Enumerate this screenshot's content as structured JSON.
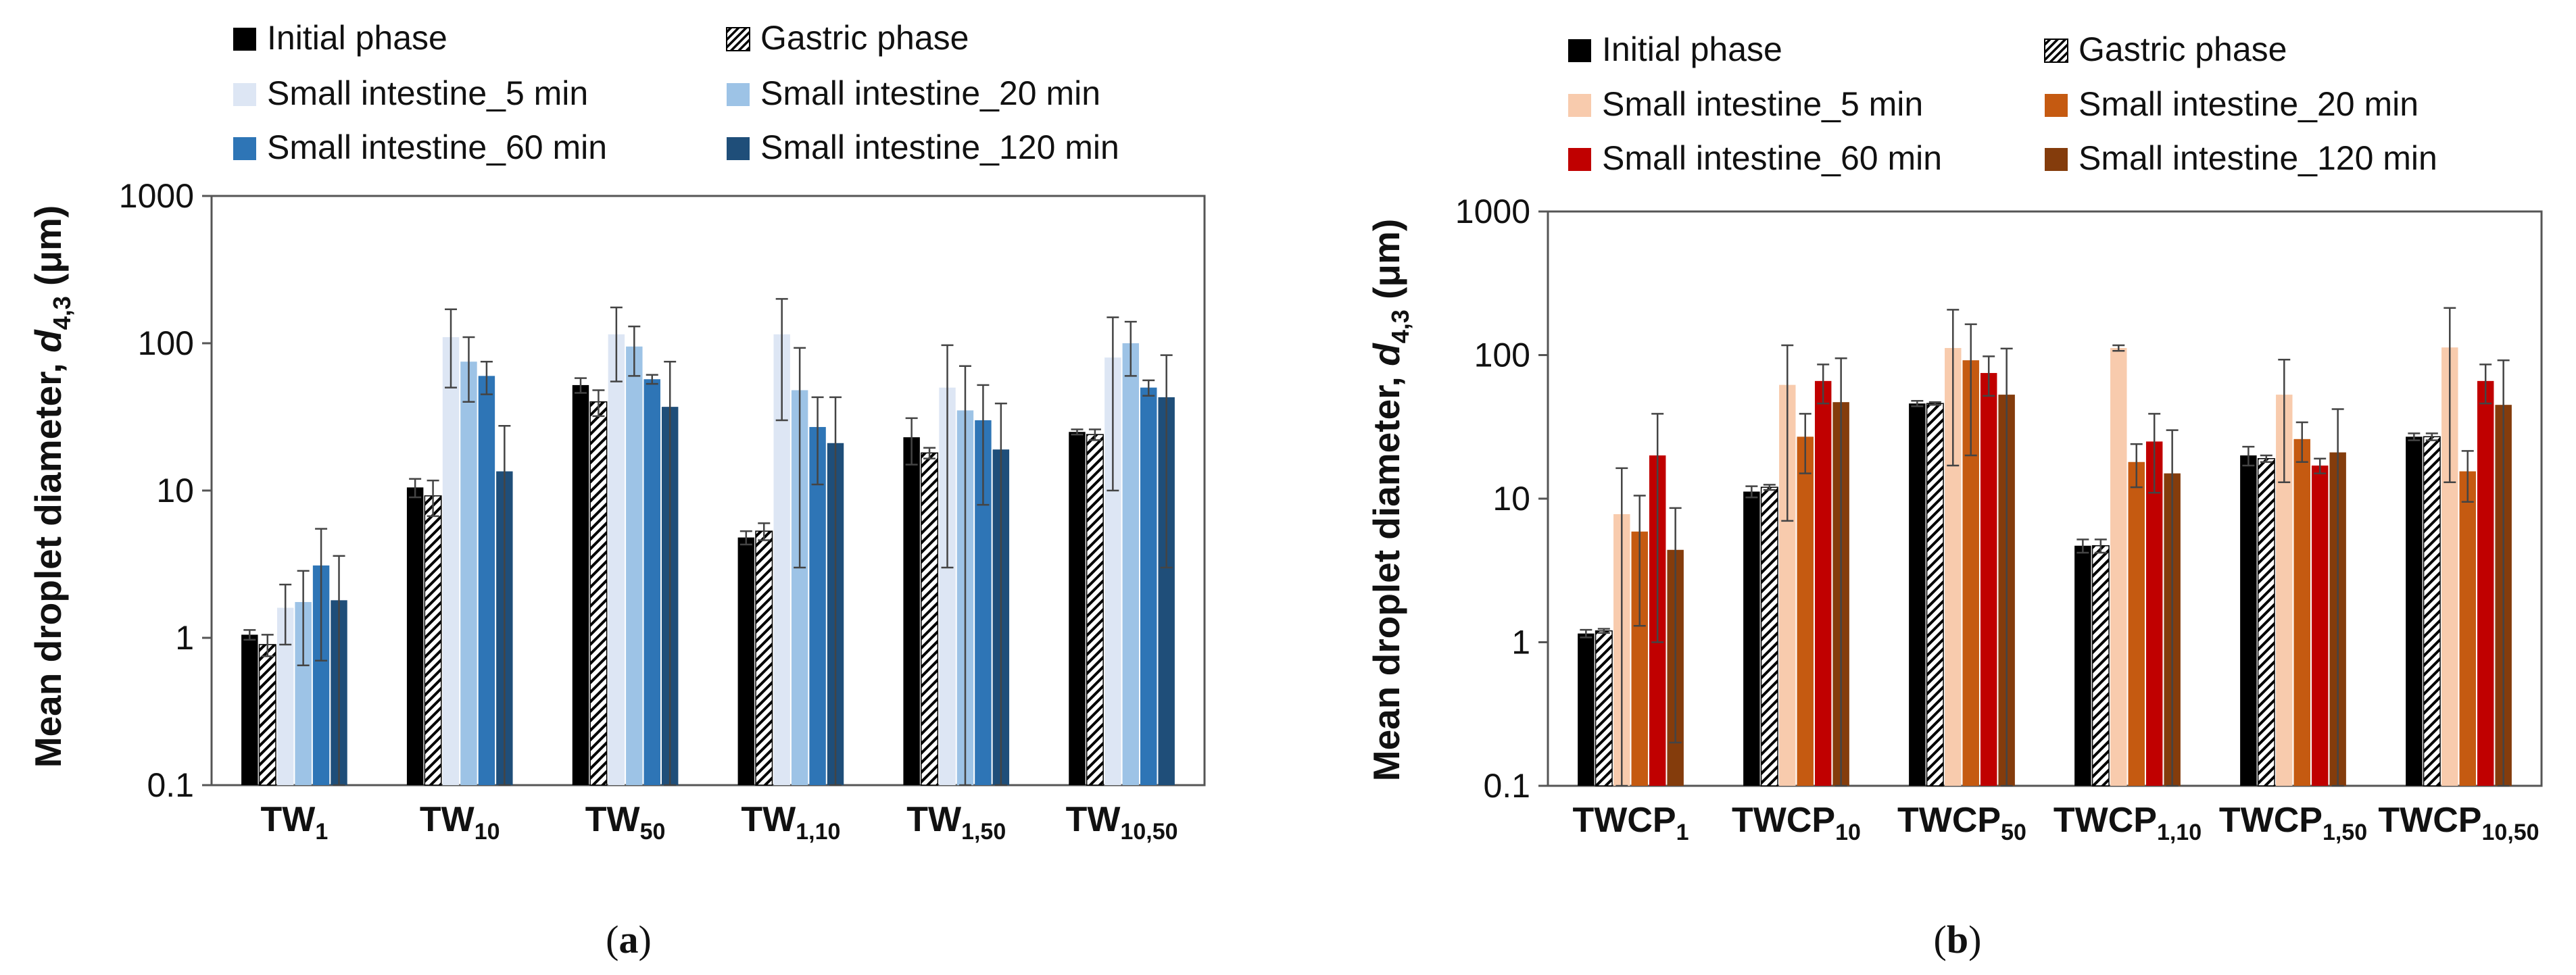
{
  "chart_data": [
    {
      "panel_label": "a",
      "type": "bar",
      "yscale": "log",
      "ylim": [
        0.1,
        1000
      ],
      "ylabel": "Mean droplet diameter,",
      "ylabel_symbol": "d",
      "ylabel_subscript": "4,3",
      "ylabel_unit": "(μm)",
      "ytick_labels": [
        "0.1",
        "1",
        "10",
        "100",
        "1000"
      ],
      "categories": [
        {
          "base": "TW",
          "sub": "1"
        },
        {
          "base": "TW",
          "sub": "10"
        },
        {
          "base": "TW",
          "sub": "50"
        },
        {
          "base": "TW",
          "sub": "1,10"
        },
        {
          "base": "TW",
          "sub": "1,50"
        },
        {
          "base": "TW",
          "sub": "10,50"
        }
      ],
      "series": [
        {
          "name": "Initial phase",
          "color": "#000000",
          "pattern": "solid",
          "values": [
            1.05,
            10.5,
            52,
            4.8,
            23,
            25
          ],
          "errors": [
            0.08,
            1.5,
            6,
            0.5,
            8,
            1
          ]
        },
        {
          "name": "Gastric phase",
          "color": "#000000",
          "pattern": "hatch",
          "values": [
            0.9,
            9.2,
            40,
            5.3,
            18,
            24
          ],
          "errors": [
            0.15,
            2.5,
            8,
            0.7,
            1.5,
            2
          ]
        },
        {
          "name": "Small intestine_5 min",
          "color": "#dde6f4",
          "pattern": "solid",
          "values": [
            1.6,
            110,
            115,
            115,
            50,
            80
          ],
          "errors": [
            0.7,
            60,
            60,
            85,
            47,
            70
          ]
        },
        {
          "name": "Small intestine_20 min",
          "color": "#9dc3e6",
          "pattern": "solid",
          "values": [
            1.75,
            75,
            95,
            48,
            35,
            100
          ],
          "errors": [
            1.1,
            35,
            35,
            45,
            35,
            40
          ]
        },
        {
          "name": "Small intestine_60 min",
          "color": "#2e75b6",
          "pattern": "solid",
          "values": [
            3.1,
            60,
            57,
            27,
            30,
            50
          ],
          "errors": [
            2.4,
            15,
            4,
            16,
            22,
            6
          ]
        },
        {
          "name": "Small intestine_120 min",
          "color": "#1f4e79",
          "pattern": "solid",
          "values": [
            1.8,
            13.5,
            37,
            21,
            19,
            43
          ],
          "errors": [
            1.8,
            14,
            38,
            22,
            20,
            40
          ]
        }
      ]
    },
    {
      "panel_label": "b",
      "type": "bar",
      "yscale": "log",
      "ylim": [
        0.1,
        1000
      ],
      "ylabel": "Mean droplet diameter,",
      "ylabel_symbol": "d",
      "ylabel_subscript": "4,3",
      "ylabel_unit": "(μm)",
      "ytick_labels": [
        "0.1",
        "1",
        "10",
        "100",
        "1000"
      ],
      "categories": [
        {
          "base": "TWCP",
          "sub": "1"
        },
        {
          "base": "TWCP",
          "sub": "10"
        },
        {
          "base": "TWCP",
          "sub": "50"
        },
        {
          "base": "TWCP",
          "sub": "1,10"
        },
        {
          "base": "TWCP",
          "sub": "1,50"
        },
        {
          "base": "TWCP",
          "sub": "10,50"
        }
      ],
      "series": [
        {
          "name": "Initial phase",
          "color": "#000000",
          "pattern": "solid",
          "values": [
            1.15,
            11.2,
            46,
            4.7,
            20,
            27
          ],
          "errors": [
            0.07,
            1,
            2,
            0.5,
            3,
            1.5
          ]
        },
        {
          "name": "Gastric phase",
          "color": "#000000",
          "pattern": "hatch",
          "values": [
            1.2,
            12,
            46,
            4.7,
            19,
            27
          ],
          "errors": [
            0.04,
            0.5,
            1,
            0.5,
            1,
            1.5
          ]
        },
        {
          "name": "Small intestine_5 min",
          "color": "#f8cbad",
          "pattern": "solid",
          "values": [
            7.8,
            62,
            112,
            112,
            53,
            113
          ],
          "errors": [
            8.5,
            55,
            95,
            5,
            40,
            100
          ]
        },
        {
          "name": "Small intestine_20 min",
          "color": "#c55a11",
          "pattern": "solid",
          "values": [
            5.9,
            27,
            92,
            18,
            26,
            15.5
          ],
          "errors": [
            4.6,
            12,
            72,
            6,
            8,
            6
          ]
        },
        {
          "name": "Small intestine_60 min",
          "color": "#c00000",
          "pattern": "solid",
          "values": [
            20,
            66,
            75,
            25,
            17,
            66
          ],
          "errors": [
            19,
            20,
            23,
            14,
            2,
            20
          ]
        },
        {
          "name": "Small intestine_120 min",
          "color": "#843c0c",
          "pattern": "solid",
          "values": [
            4.4,
            47,
            53,
            15,
            21,
            45
          ],
          "errors": [
            4.2,
            48,
            58,
            15,
            21,
            47
          ]
        }
      ]
    }
  ]
}
